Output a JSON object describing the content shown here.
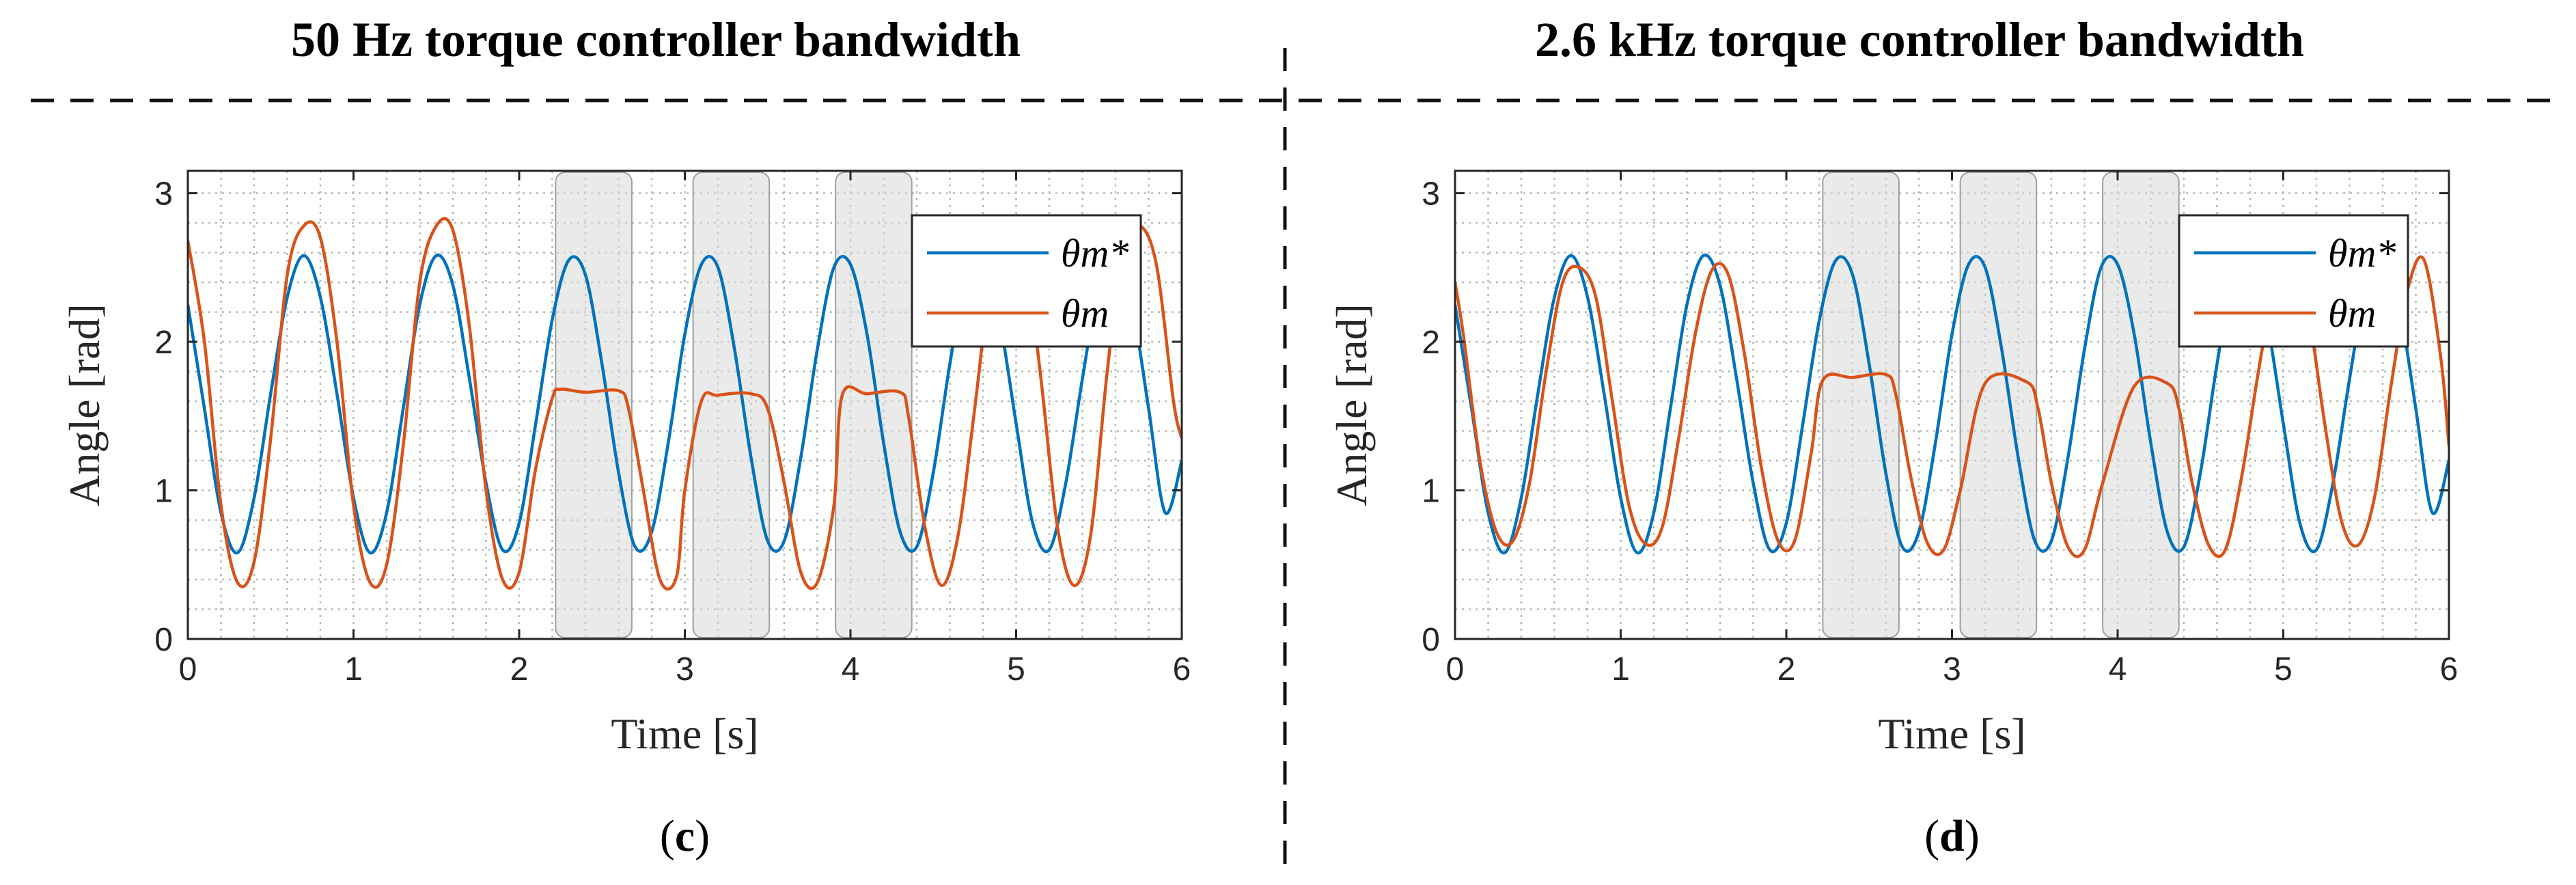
{
  "figure": {
    "left_title": "50 Hz torque controller bandwidth",
    "right_title": "2.6 kHz torque controller bandwidth"
  },
  "chart_data": [
    {
      "type": "line",
      "panel_label": "(c)",
      "panel_letter": "c",
      "xlabel": "Time [s]",
      "ylabel": "Angle [rad]",
      "xlim": [
        0,
        6
      ],
      "ylim": [
        0,
        3.15
      ],
      "xticks": [
        0,
        1,
        2,
        3,
        4,
        5,
        6
      ],
      "yticks": [
        0,
        1,
        2,
        3
      ],
      "grid": true,
      "legend_position": "top-right",
      "shaded_intervals": [
        [
          2.22,
          2.68
        ],
        [
          3.05,
          3.51
        ],
        [
          3.91,
          4.37
        ]
      ],
      "series": [
        {
          "name": "θm*",
          "color": "#0072BD",
          "x": [
            0,
            0.1,
            0.2,
            0.3,
            0.4,
            0.5,
            0.6,
            0.7,
            0.8,
            0.9,
            1.0,
            1.1,
            1.2,
            1.3,
            1.4,
            1.5,
            1.6,
            1.7,
            1.8,
            1.9,
            2.0,
            2.1,
            2.2,
            2.3,
            2.4,
            2.5,
            2.6,
            2.7,
            2.8,
            2.9,
            3.0,
            3.1,
            3.2,
            3.3,
            3.4,
            3.5,
            3.6,
            3.7,
            3.8,
            3.9,
            4.0,
            4.1,
            4.2,
            4.3,
            4.4,
            4.5,
            4.6,
            4.7,
            4.8,
            4.9,
            5.0,
            5.1,
            5.2,
            5.3,
            5.4,
            5.5,
            5.6,
            5.7,
            5.8,
            5.9,
            6.0
          ],
          "y": [
            2.25,
            1.55,
            0.85,
            0.58,
            0.95,
            1.65,
            2.3,
            2.58,
            2.3,
            1.65,
            0.95,
            0.58,
            0.85,
            1.55,
            2.25,
            2.58,
            2.38,
            1.75,
            1.05,
            0.6,
            0.78,
            1.45,
            2.15,
            2.55,
            2.45,
            1.85,
            1.12,
            0.62,
            0.72,
            1.32,
            2.05,
            2.52,
            2.5,
            1.95,
            1.22,
            0.66,
            0.66,
            1.22,
            1.95,
            2.5,
            2.52,
            2.05,
            1.32,
            0.72,
            0.62,
            1.12,
            1.85,
            2.45,
            2.55,
            2.15,
            1.45,
            0.78,
            0.6,
            1.05,
            1.75,
            2.38,
            2.58,
            2.25,
            1.55,
            0.85,
            1.2
          ]
        },
        {
          "name": "θm",
          "color": "#D95319",
          "x": [
            0,
            0.1,
            0.2,
            0.3,
            0.4,
            0.5,
            0.6,
            0.7,
            0.8,
            0.9,
            1.0,
            1.1,
            1.2,
            1.3,
            1.4,
            1.5,
            1.6,
            1.7,
            1.8,
            1.9,
            2.0,
            2.1,
            2.2,
            2.25,
            2.4,
            2.6,
            2.66,
            2.75,
            2.85,
            2.95,
            3.0,
            3.1,
            3.2,
            3.4,
            3.5,
            3.6,
            3.7,
            3.8,
            3.9,
            3.95,
            4.1,
            4.3,
            4.35,
            4.45,
            4.55,
            4.65,
            4.75,
            4.85,
            4.95,
            5.05,
            5.15,
            5.25,
            5.35,
            5.45,
            5.55,
            5.65,
            5.75,
            5.85,
            5.95,
            6.0
          ],
          "y": [
            2.68,
            2.0,
            0.9,
            0.38,
            0.52,
            1.35,
            2.45,
            2.78,
            2.7,
            2.0,
            0.9,
            0.38,
            0.5,
            1.3,
            2.4,
            2.78,
            2.75,
            2.1,
            1.0,
            0.4,
            0.45,
            1.15,
            1.62,
            1.68,
            1.66,
            1.67,
            1.55,
            1.0,
            0.4,
            0.42,
            1.0,
            1.6,
            1.64,
            1.65,
            1.55,
            1.05,
            0.45,
            0.38,
            0.9,
            1.64,
            1.65,
            1.66,
            1.5,
            0.75,
            0.36,
            0.7,
            1.55,
            2.45,
            2.75,
            2.6,
            1.75,
            0.75,
            0.36,
            0.7,
            1.8,
            2.65,
            2.78,
            2.5,
            1.6,
            1.35
          ]
        }
      ]
    },
    {
      "type": "line",
      "panel_label": "(d)",
      "panel_letter": "d",
      "xlabel": "Time [s]",
      "ylabel": "Angle [rad]",
      "xlim": [
        0,
        6
      ],
      "ylim": [
        0,
        3.15
      ],
      "xticks": [
        0,
        1,
        2,
        3,
        4,
        5,
        6
      ],
      "yticks": [
        0,
        1,
        2,
        3
      ],
      "grid": true,
      "legend_position": "top-right",
      "shaded_intervals": [
        [
          2.22,
          2.68
        ],
        [
          3.05,
          3.51
        ],
        [
          3.91,
          4.37
        ]
      ],
      "series": [
        {
          "name": "θm*",
          "color": "#0072BD",
          "x": [
            0,
            0.1,
            0.2,
            0.3,
            0.4,
            0.5,
            0.6,
            0.7,
            0.8,
            0.9,
            1.0,
            1.1,
            1.2,
            1.3,
            1.4,
            1.5,
            1.6,
            1.7,
            1.8,
            1.9,
            2.0,
            2.1,
            2.2,
            2.3,
            2.4,
            2.5,
            2.6,
            2.7,
            2.8,
            2.9,
            3.0,
            3.1,
            3.2,
            3.3,
            3.4,
            3.5,
            3.6,
            3.7,
            3.8,
            3.9,
            4.0,
            4.1,
            4.2,
            4.3,
            4.4,
            4.5,
            4.6,
            4.7,
            4.8,
            4.9,
            5.0,
            5.1,
            5.2,
            5.3,
            5.4,
            5.5,
            5.6,
            5.7,
            5.8,
            5.9,
            6.0
          ],
          "y": [
            2.25,
            1.55,
            0.85,
            0.58,
            0.95,
            1.65,
            2.3,
            2.58,
            2.3,
            1.65,
            0.95,
            0.58,
            0.85,
            1.55,
            2.25,
            2.58,
            2.38,
            1.75,
            1.05,
            0.6,
            0.78,
            1.45,
            2.15,
            2.55,
            2.45,
            1.85,
            1.12,
            0.62,
            0.72,
            1.32,
            2.05,
            2.52,
            2.5,
            1.95,
            1.22,
            0.66,
            0.66,
            1.22,
            1.95,
            2.5,
            2.52,
            2.05,
            1.32,
            0.72,
            0.62,
            1.12,
            1.85,
            2.45,
            2.55,
            2.15,
            1.45,
            0.78,
            0.6,
            1.05,
            1.75,
            2.38,
            2.58,
            2.25,
            1.55,
            0.85,
            1.2
          ]
        },
        {
          "name": "θm",
          "color": "#D95319",
          "x": [
            0,
            0.05,
            0.15,
            0.25,
            0.35,
            0.45,
            0.55,
            0.65,
            0.75,
            0.85,
            0.95,
            1.05,
            1.15,
            1.25,
            1.35,
            1.45,
            1.55,
            1.65,
            1.75,
            1.85,
            1.95,
            2.05,
            2.15,
            2.22,
            2.4,
            2.6,
            2.66,
            2.75,
            2.85,
            2.95,
            3.05,
            3.2,
            3.45,
            3.52,
            3.6,
            3.7,
            3.8,
            3.91,
            4.1,
            4.3,
            4.37,
            4.45,
            4.55,
            4.65,
            4.75,
            4.85,
            4.95,
            5.05,
            5.15,
            5.25,
            5.35,
            5.45,
            5.55,
            5.65,
            5.75,
            5.85,
            5.95,
            6.0
          ],
          "y": [
            2.4,
            2.05,
            1.2,
            0.72,
            0.66,
            1.05,
            1.8,
            2.4,
            2.5,
            2.3,
            1.6,
            0.9,
            0.64,
            0.75,
            1.35,
            2.05,
            2.48,
            2.45,
            1.9,
            1.15,
            0.66,
            0.66,
            1.25,
            1.74,
            1.76,
            1.78,
            1.65,
            1.1,
            0.65,
            0.6,
            1.0,
            1.72,
            1.73,
            1.55,
            1.05,
            0.62,
            0.6,
            1.05,
            1.7,
            1.72,
            1.55,
            1.05,
            0.63,
            0.6,
            1.1,
            1.8,
            2.4,
            2.5,
            2.2,
            1.45,
            0.8,
            0.63,
            0.95,
            1.7,
            2.35,
            2.55,
            1.9,
            1.3
          ]
        }
      ]
    }
  ]
}
